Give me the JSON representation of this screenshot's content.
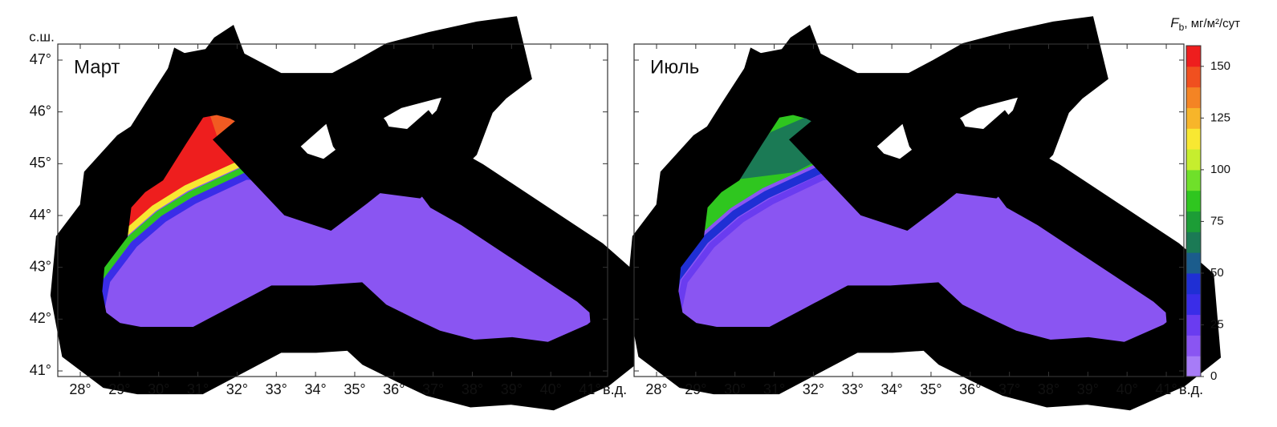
{
  "panels": [
    {
      "label": "Март"
    },
    {
      "label": "Июль"
    }
  ],
  "lat_unit": "с.ш.",
  "lon_unit": "в.д.",
  "lat_ticks": [
    {
      "value": 41,
      "label": "41°"
    },
    {
      "value": 42,
      "label": "42°"
    },
    {
      "value": 43,
      "label": "43°"
    },
    {
      "value": 44,
      "label": "44°"
    },
    {
      "value": 45,
      "label": "45°"
    },
    {
      "value": 46,
      "label": "46°"
    },
    {
      "value": 47,
      "label": "47°"
    }
  ],
  "lon_ticks": [
    {
      "value": 28,
      "label": "28°"
    },
    {
      "value": 29,
      "label": "29°"
    },
    {
      "value": 30,
      "label": "30°"
    },
    {
      "value": 31,
      "label": "31°"
    },
    {
      "value": 32,
      "label": "32°"
    },
    {
      "value": 33,
      "label": "33°"
    },
    {
      "value": 34,
      "label": "34°"
    },
    {
      "value": 35,
      "label": "35°"
    },
    {
      "value": 36,
      "label": "36°"
    },
    {
      "value": 37,
      "label": "37°"
    },
    {
      "value": 38,
      "label": "38°"
    },
    {
      "value": 39,
      "label": "39°"
    },
    {
      "value": 40,
      "label": "40°"
    },
    {
      "value": 41,
      "label": "41°"
    }
  ],
  "colorbar": {
    "symbol": "F",
    "subscript": "b",
    "units": ", мг/м²/сут",
    "lim": [
      0,
      160
    ],
    "ticks": [
      0,
      25,
      50,
      75,
      100,
      125,
      150
    ],
    "colors": [
      "#a77cf7",
      "#8a55f2",
      "#6a3cf0",
      "#3a2de8",
      "#1f2fd4",
      "#1b5c8c",
      "#1b7a55",
      "#1c9d36",
      "#2fc61f",
      "#6fe02a",
      "#c6ee2e",
      "#f8e832",
      "#f7b52a",
      "#f48424",
      "#f0501f",
      "#ee1e1e"
    ]
  }
}
